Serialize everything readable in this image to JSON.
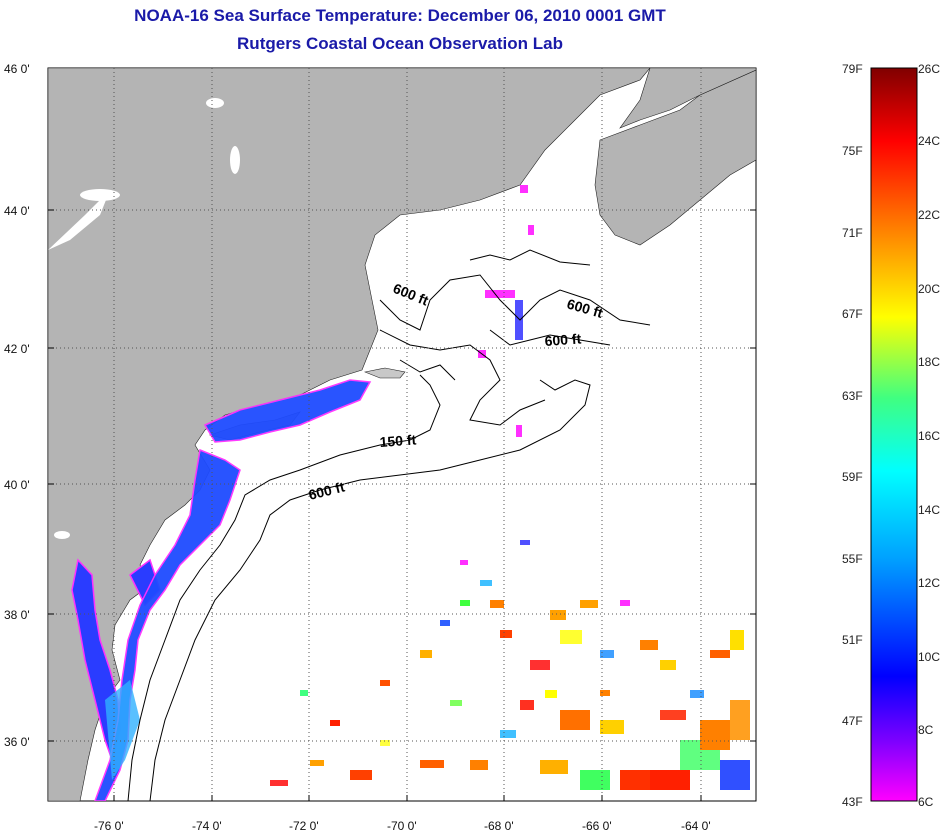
{
  "header": {
    "title_line1": "NOAA-16 Sea Surface Temperature:  December 06, 2010 0001 GMT",
    "title_line2": "Rutgers Coastal Ocean Observation Lab"
  },
  "map": {
    "lat_labels": [
      "46 0'",
      "44 0'",
      "42 0'",
      "40 0'",
      "38 0'",
      "36 0'"
    ],
    "lon_labels": [
      "-76 0'",
      "-74 0'",
      "-72 0'",
      "-70 0'",
      "-68 0'",
      "-66 0'",
      "-64 0'"
    ],
    "contours": [
      {
        "label": "600 ft"
      },
      {
        "label": "600 ft"
      },
      {
        "label": "600 ft"
      },
      {
        "label": "150 ft"
      },
      {
        "label": "600 ft"
      }
    ],
    "colors": {
      "land": "#b4b4b4",
      "ocean": "#ffffff",
      "grid": "#555555"
    }
  },
  "colorbar": {
    "fahrenheit_labels": [
      "79F",
      "75F",
      "71F",
      "67F",
      "63F",
      "59F",
      "55F",
      "51F",
      "47F",
      "43F"
    ],
    "celsius_labels": [
      "26C",
      "24C",
      "22C",
      "20C",
      "18C",
      "16C",
      "14C",
      "12C",
      "10C",
      "8C",
      "6C"
    ],
    "gradient_colors": [
      "#ff00ff",
      "#0000ff",
      "#00c8ff",
      "#00ff80",
      "#ffff00",
      "#ff8000",
      "#ff0000",
      "#800000"
    ]
  }
}
